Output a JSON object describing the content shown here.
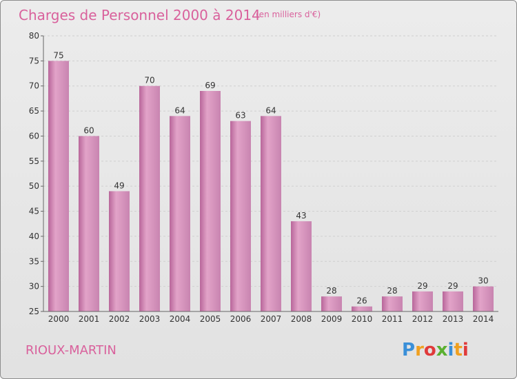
{
  "chart_data": {
    "type": "bar",
    "title": "Charges de Personnel 2000 à 2014",
    "subtitle": "(en milliers d'€)",
    "categories": [
      "2000",
      "2001",
      "2002",
      "2003",
      "2004",
      "2005",
      "2006",
      "2007",
      "2008",
      "2009",
      "2010",
      "2011",
      "2012",
      "2013",
      "2014"
    ],
    "values": [
      75,
      60,
      49,
      70,
      64,
      69,
      63,
      64,
      43,
      28,
      26,
      28,
      29,
      29,
      30
    ],
    "ylim": [
      25,
      80
    ],
    "yticks": [
      25,
      30,
      35,
      40,
      45,
      50,
      55,
      60,
      65,
      70,
      75,
      80
    ],
    "xlabel": "",
    "ylabel": "",
    "grid": true,
    "colors": {
      "bar": "#c77fac",
      "title": "#d9619c"
    }
  },
  "commune": "RIOUX-MARTIN",
  "logo": {
    "letters": [
      "P",
      "r",
      "o",
      "x",
      "i",
      "t",
      "i"
    ],
    "colors": [
      "#3a8fd8",
      "#f0a020",
      "#e03a3a",
      "#5ab030",
      "#3a8fd8",
      "#f0a020",
      "#e03a3a"
    ]
  }
}
